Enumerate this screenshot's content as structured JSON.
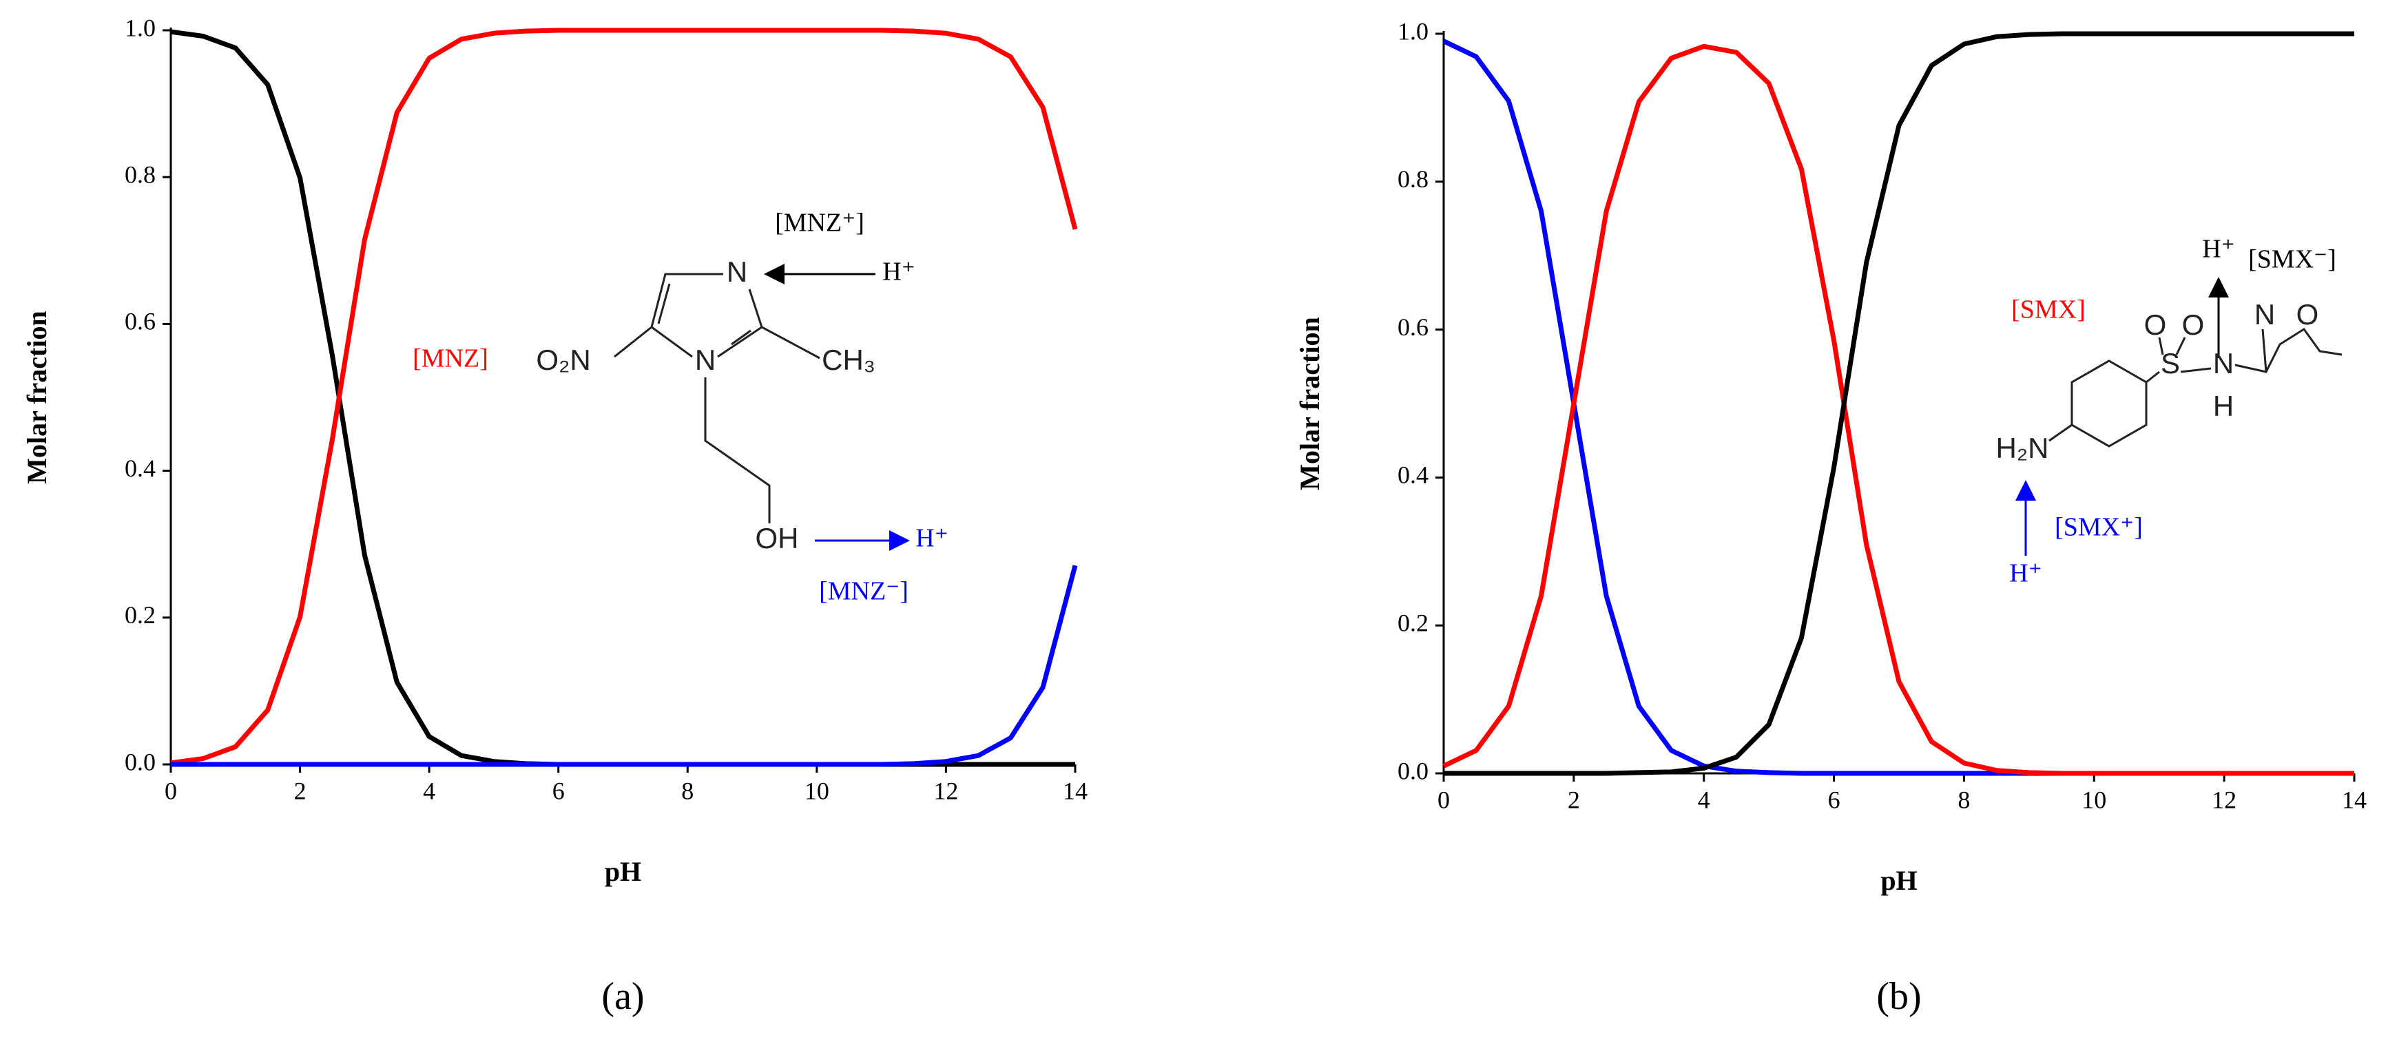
{
  "chart_data": [
    {
      "type": "line",
      "panel_label": "(a)",
      "x_label": "pH",
      "y_label": "Molar fraction",
      "x": [
        0,
        0.5,
        1,
        1.5,
        2,
        2.5,
        3,
        3.5,
        4,
        4.5,
        5,
        5.5,
        6,
        6.5,
        7,
        7.5,
        8,
        8.5,
        9,
        9.5,
        10,
        10.5,
        11,
        11.5,
        12,
        12.5,
        13,
        13.5,
        14
      ],
      "series": [
        {
          "name": "[MNZ⁺]",
          "color": "#000000",
          "values": [
            0.998,
            0.992,
            0.976,
            0.926,
            0.799,
            0.557,
            0.285,
            0.112,
            0.038,
            0.012,
            0.004,
            0.001,
            0,
            0,
            0,
            0,
            0,
            0,
            0,
            0,
            0,
            0,
            0,
            0,
            0,
            0,
            0,
            0,
            0
          ]
        },
        {
          "name": "[MNZ]",
          "color": "#ff0000",
          "values": [
            0.002,
            0.008,
            0.024,
            0.074,
            0.201,
            0.443,
            0.715,
            0.888,
            0.962,
            0.988,
            0.996,
            0.999,
            1,
            1,
            1,
            1,
            1,
            1,
            1,
            1,
            1,
            1,
            1,
            0.999,
            0.996,
            0.988,
            0.964,
            0.895,
            0.729
          ]
        },
        {
          "name": "[MNZ⁻]",
          "color": "#0000ff",
          "values": [
            0,
            0,
            0,
            0,
            0,
            0,
            0,
            0,
            0,
            0,
            0,
            0,
            0,
            0,
            0,
            0,
            0,
            0,
            0,
            0,
            0,
            0,
            0,
            0.001,
            0.004,
            0.012,
            0.036,
            0.105,
            0.271
          ]
        }
      ],
      "annotations": [
        {
          "text": "H⁺",
          "color": "#000000"
        },
        {
          "text": "H⁺",
          "color": "#0000ff"
        },
        {
          "text": "N",
          "color": "#222222"
        },
        {
          "text": "N",
          "color": "#222222"
        },
        {
          "text": "O₂N",
          "color": "#222222"
        },
        {
          "text": "CH₃",
          "color": "#222222"
        },
        {
          "text": "OH",
          "color": "#222222"
        }
      ],
      "xlim": [
        0,
        14
      ],
      "ylim": [
        0,
        1
      ],
      "xticks": [
        0,
        2,
        4,
        6,
        8,
        10,
        12,
        14
      ],
      "yticks": [
        {
          "value": 0,
          "label": "0.0"
        },
        {
          "value": 0.2,
          "label": "0.2"
        },
        {
          "value": 0.4,
          "label": "0.4"
        },
        {
          "value": 0.6,
          "label": "0.6"
        },
        {
          "value": 0.8,
          "label": "0.8"
        },
        {
          "value": 1,
          "label": "1.0"
        }
      ]
    },
    {
      "type": "line",
      "panel_label": "(b)",
      "x_label": "pH",
      "y_label": "Molar fraction",
      "x": [
        0,
        0.5,
        1,
        1.5,
        2,
        2.5,
        3,
        3.5,
        4,
        4.5,
        5,
        5.5,
        6,
        6.5,
        7,
        7.5,
        8,
        8.5,
        9,
        9.5,
        10,
        10.5,
        11,
        11.5,
        12,
        12.5,
        13,
        13.5,
        14
      ],
      "series": [
        {
          "name": "[SMX⁺]",
          "color": "#0000ff",
          "values": [
            0.99,
            0.969,
            0.909,
            0.76,
            0.5,
            0.24,
            0.091,
            0.031,
            0.01,
            0.003,
            0.001,
            0,
            0,
            0,
            0,
            0,
            0,
            0,
            0,
            0,
            0,
            0,
            0,
            0,
            0,
            0,
            0,
            0,
            0
          ]
        },
        {
          "name": "[SMX]",
          "color": "#ff0000",
          "values": [
            0.01,
            0.031,
            0.091,
            0.24,
            0.5,
            0.76,
            0.908,
            0.967,
            0.983,
            0.975,
            0.933,
            0.817,
            0.585,
            0.309,
            0.124,
            0.043,
            0.014,
            0.004,
            0.001,
            0,
            0,
            0,
            0,
            0,
            0,
            0,
            0,
            0,
            0
          ]
        },
        {
          "name": "[SMX⁻]",
          "color": "#000000",
          "values": [
            0,
            0,
            0,
            0,
            0,
            0,
            0.001,
            0.002,
            0.007,
            0.022,
            0.066,
            0.183,
            0.414,
            0.691,
            0.876,
            0.957,
            0.986,
            0.996,
            0.999,
            1,
            1,
            1,
            1,
            1,
            1,
            1,
            1,
            1,
            1
          ]
        }
      ],
      "annotations": [
        {
          "text": "H⁺",
          "color": "#000000"
        },
        {
          "text": "H⁺",
          "color": "#0000ff"
        },
        {
          "text": "H₂N",
          "color": "#222222"
        },
        {
          "text": "S",
          "color": "#222222"
        },
        {
          "text": "O",
          "color": "#222222"
        },
        {
          "text": "O",
          "color": "#222222"
        },
        {
          "text": "N",
          "color": "#222222"
        },
        {
          "text": "H",
          "color": "#222222"
        },
        {
          "text": "N",
          "color": "#222222"
        },
        {
          "text": "O",
          "color": "#222222"
        }
      ],
      "xlim": [
        0,
        14
      ],
      "ylim": [
        0,
        1
      ],
      "xticks": [
        0,
        2,
        4,
        6,
        8,
        10,
        12,
        14
      ],
      "yticks": [
        {
          "value": 0,
          "label": "0.0"
        },
        {
          "value": 0.2,
          "label": "0.2"
        },
        {
          "value": 0.4,
          "label": "0.4"
        },
        {
          "value": 0.6,
          "label": "0.6"
        },
        {
          "value": 0.8,
          "label": "0.8"
        },
        {
          "value": 1,
          "label": "1.0"
        }
      ]
    }
  ]
}
